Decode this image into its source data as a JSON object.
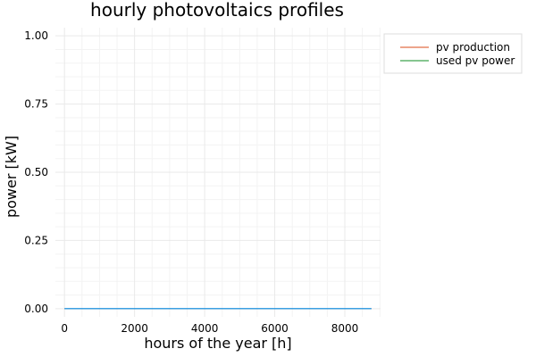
{
  "chart_data": {
    "type": "line",
    "title": "hourly photovoltaics profiles",
    "xlabel": "hours of the year [h]",
    "ylabel": "power [kW]",
    "xlim": [
      -260,
      9020
    ],
    "ylim": [
      -0.03,
      1.03
    ],
    "x_ticks": [
      0,
      2000,
      4000,
      6000,
      8000
    ],
    "y_ticks": [
      0.0,
      0.25,
      0.5,
      0.75,
      1.0
    ],
    "x_tick_labels": [
      "0",
      "2000",
      "4000",
      "6000",
      "8000"
    ],
    "y_tick_labels": [
      "0.00",
      "0.25",
      "0.50",
      "0.75",
      "1.00"
    ],
    "grid": true,
    "legend_position": "top-right-outside",
    "series": [
      {
        "name": "pv production",
        "color": "#e26f46",
        "x": [
          0,
          8760
        ],
        "y": [
          0,
          0
        ]
      },
      {
        "name": "used pv power",
        "color": "#3da44d",
        "x": [
          0,
          8760
        ],
        "y": [
          0,
          0
        ]
      }
    ],
    "overlap_color": "#009af9"
  }
}
